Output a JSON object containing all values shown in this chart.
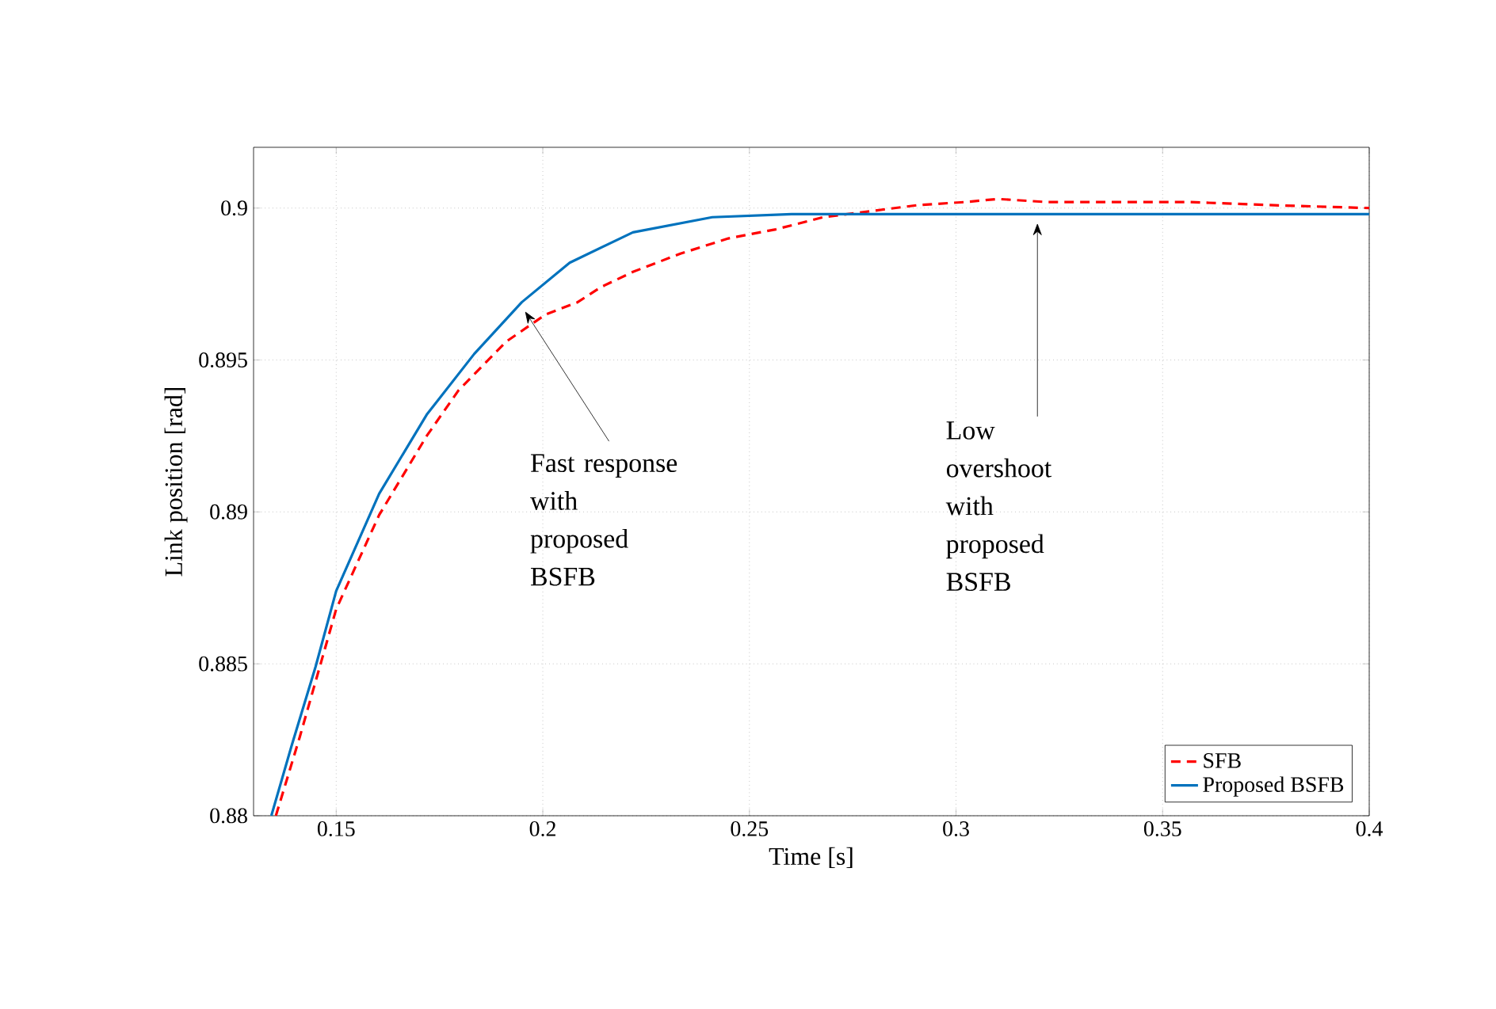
{
  "chart_data": {
    "type": "line",
    "xlabel": "Time [s]",
    "ylabel": "Link position [rad]",
    "xlim": [
      0.13,
      0.4
    ],
    "ylim": [
      0.88,
      0.902
    ],
    "xticks": [
      0.15,
      0.2,
      0.25,
      0.3,
      0.35,
      0.4
    ],
    "yticks": [
      0.88,
      0.885,
      0.89,
      0.895,
      0.9
    ],
    "grid": true,
    "legend": "bottom right",
    "marker": "none",
    "series": [
      {
        "name": "SFB",
        "color": "#ff0000",
        "line_style": "dashed",
        "x": [
          0.1354,
          0.1412,
          0.15,
          0.1604,
          0.1719,
          0.1796,
          0.1911,
          0.2007,
          0.2084,
          0.2141,
          0.2218,
          0.2333,
          0.2449,
          0.2564,
          0.2679,
          0.2794,
          0.2909,
          0.3025,
          0.3101,
          0.3217,
          0.337,
          0.3562,
          0.3754,
          0.4
        ],
        "values": [
          0.88,
          0.8826,
          0.8868,
          0.8899,
          0.8925,
          0.894,
          0.8956,
          0.8965,
          0.8969,
          0.8974,
          0.8979,
          0.8985,
          0.899,
          0.8993,
          0.8997,
          0.8999,
          0.9001,
          0.9002,
          0.9003,
          0.9002,
          0.9002,
          0.9002,
          0.9001,
          0.9
        ]
      },
      {
        "name": "Proposed BSFB",
        "color": "#0072bd",
        "line_style": "solid",
        "x": [
          0.1343,
          0.1392,
          0.145,
          0.15,
          0.1604,
          0.1719,
          0.1834,
          0.1949,
          0.2065,
          0.2218,
          0.241,
          0.2602,
          0.2986,
          0.3178,
          0.3562,
          0.4
        ],
        "values": [
          0.88,
          0.8823,
          0.8849,
          0.8874,
          0.8906,
          0.8932,
          0.8952,
          0.8969,
          0.8982,
          0.8992,
          0.8997,
          0.8998,
          0.8998,
          0.8998,
          0.8998,
          0.8998
        ]
      }
    ],
    "annotations": [
      {
        "text": "Fast response with proposed BSFB",
        "x": 0.1957,
        "y": 0.8966
      },
      {
        "text": "Low overshoot with proposed BSFB",
        "x": 0.3197,
        "y": 0.8995
      }
    ]
  }
}
